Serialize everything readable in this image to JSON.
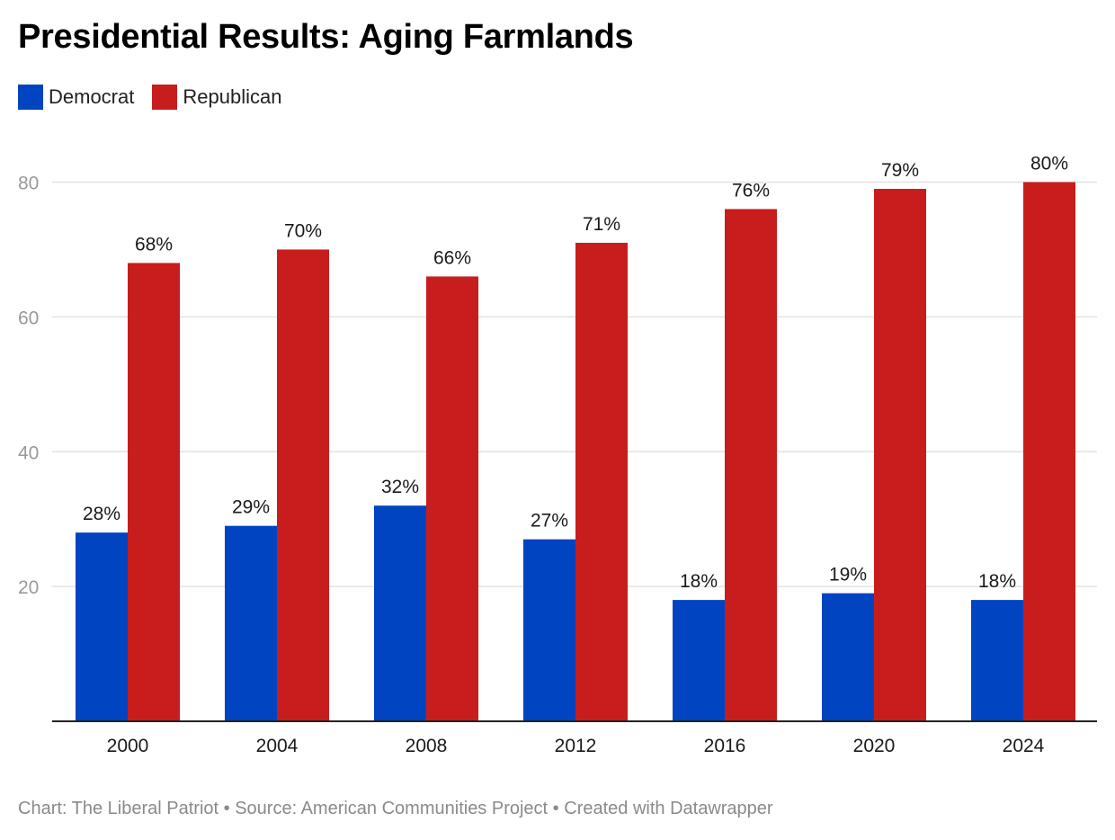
{
  "title": "Presidential Results: Aging Farmlands",
  "legend": [
    {
      "name": "Democrat",
      "color": "#0044c1"
    },
    {
      "name": "Republican",
      "color": "#c71e1d"
    }
  ],
  "footer": {
    "chart_credit": "Chart: The Liberal Patriot",
    "source": "Source: American Communities Project",
    "created": "Created with Datawrapper",
    "separator": " • "
  },
  "chart_data": {
    "type": "bar",
    "title": "Presidential Results: Aging Farmlands",
    "categories": [
      "2000",
      "2004",
      "2008",
      "2012",
      "2016",
      "2020",
      "2024"
    ],
    "series": [
      {
        "name": "Democrat",
        "color": "#0044c1",
        "values": [
          28,
          29,
          32,
          27,
          18,
          19,
          18
        ]
      },
      {
        "name": "Republican",
        "color": "#c71e1d",
        "values": [
          68,
          70,
          66,
          71,
          76,
          79,
          80
        ]
      }
    ],
    "value_suffix": "%",
    "yticks": [
      20,
      40,
      60,
      80
    ],
    "ylim": [
      0,
      80
    ],
    "grid": true,
    "legend_position": "top-left",
    "xlabel": "",
    "ylabel": ""
  }
}
